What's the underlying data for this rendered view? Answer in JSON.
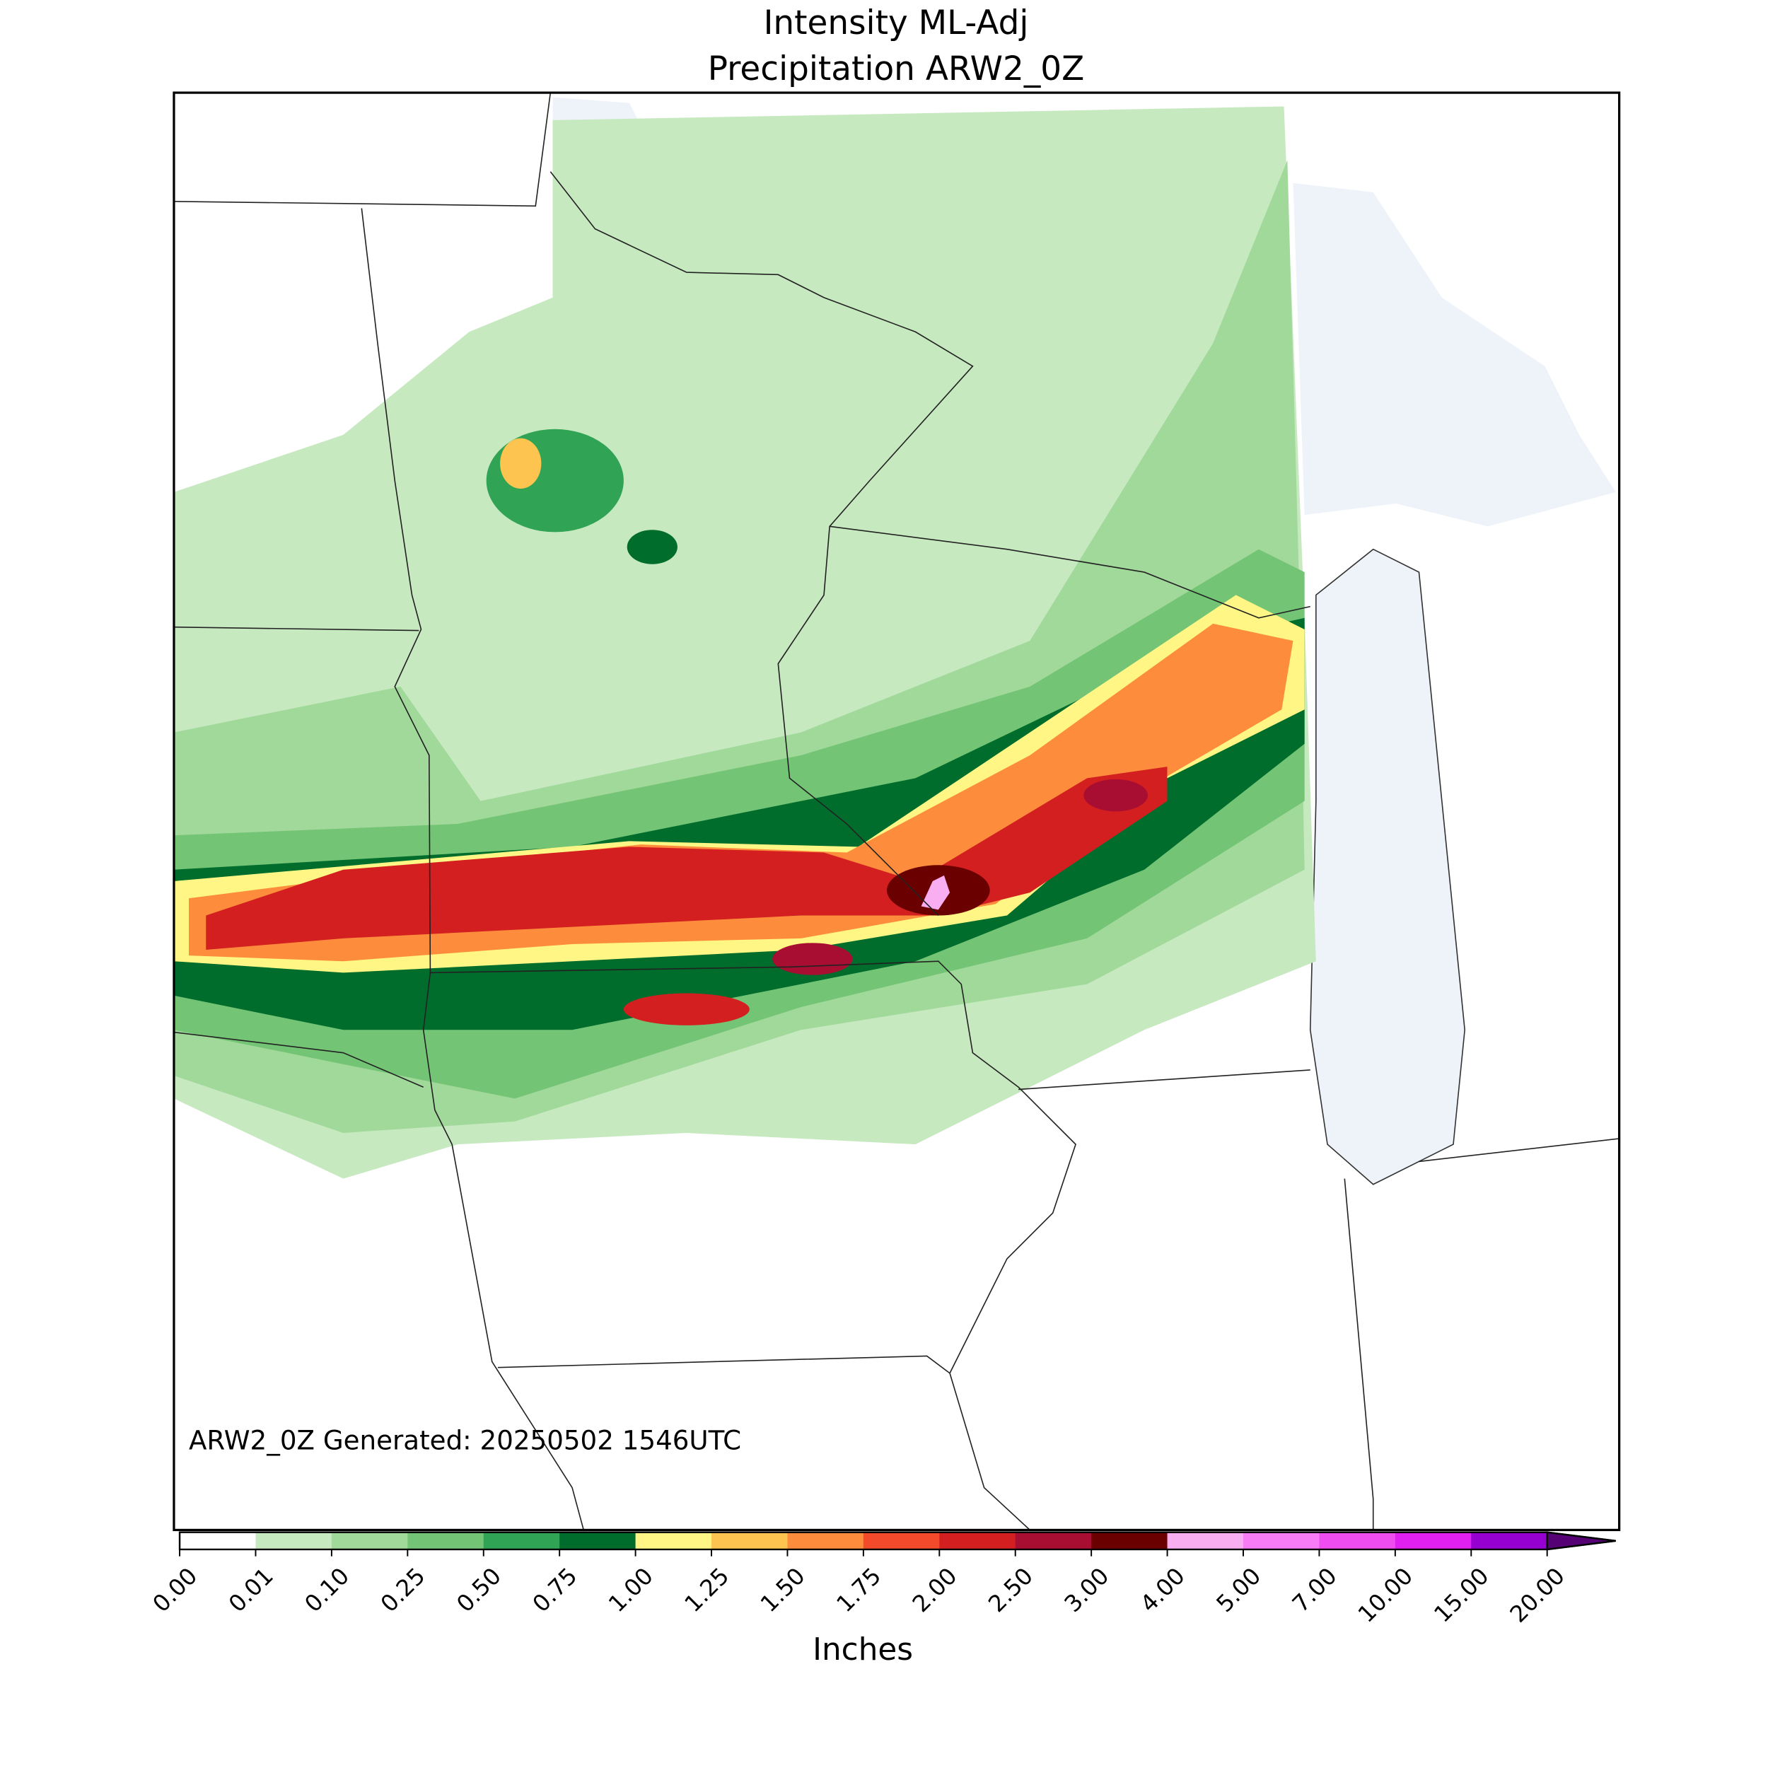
{
  "chart_data": {
    "type": "colormap",
    "title": "Intensity ML-Adj",
    "subtitle": "Precipitation ARW2_0Z",
    "annotation": "ARW2_0Z Generated: 20250502 1546UTC",
    "colorbar_label": "Inches",
    "ticks": [
      {
        "value": 0,
        "label": "0.00"
      },
      {
        "value": 0.01,
        "label": "0.01"
      },
      {
        "value": 0.1,
        "label": "0.10"
      },
      {
        "value": 0.25,
        "label": "0.25"
      },
      {
        "value": 0.5,
        "label": "0.50"
      },
      {
        "value": 0.75,
        "label": "0.75"
      },
      {
        "value": 1,
        "label": "1.00"
      },
      {
        "value": 1.25,
        "label": "1.25"
      },
      {
        "value": 1.5,
        "label": "1.50"
      },
      {
        "value": 1.75,
        "label": "1.75"
      },
      {
        "value": 2,
        "label": "2.00"
      },
      {
        "value": 2.5,
        "label": "2.50"
      },
      {
        "value": 3,
        "label": "3.00"
      },
      {
        "value": 4,
        "label": "4.00"
      },
      {
        "value": 5,
        "label": "5.00"
      },
      {
        "value": 7,
        "label": "7.00"
      },
      {
        "value": 10,
        "label": "10.00"
      },
      {
        "value": 15,
        "label": "15.00"
      },
      {
        "value": 20,
        "label": "20.00"
      }
    ],
    "colors": [
      "#ffffff",
      "#c7e9c0",
      "#a1d99b",
      "#74c476",
      "#31a354",
      "#006d2c",
      "#fff685",
      "#fec450",
      "#fd8d3c",
      "#f24a2a",
      "#d41f20",
      "#a80d32",
      "#6b0000",
      "#f9aef2",
      "#f77cf5",
      "#f04df0",
      "#e020f0",
      "#9600d0"
    ],
    "extend_color": "#560075"
  }
}
